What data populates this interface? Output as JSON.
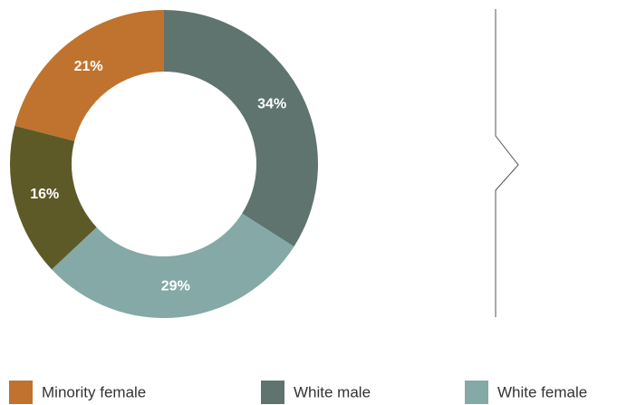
{
  "chart_data": {
    "type": "donut",
    "categories": [
      "White male",
      "White female",
      null,
      "Minority female"
    ],
    "values": [
      34,
      29,
      16,
      21
    ],
    "value_labels": [
      "34%",
      "29%",
      "16%",
      "21%"
    ],
    "colors": [
      "#5f746f",
      "#84a9a6",
      "#5e5a27",
      "#c0732e"
    ]
  }
}
